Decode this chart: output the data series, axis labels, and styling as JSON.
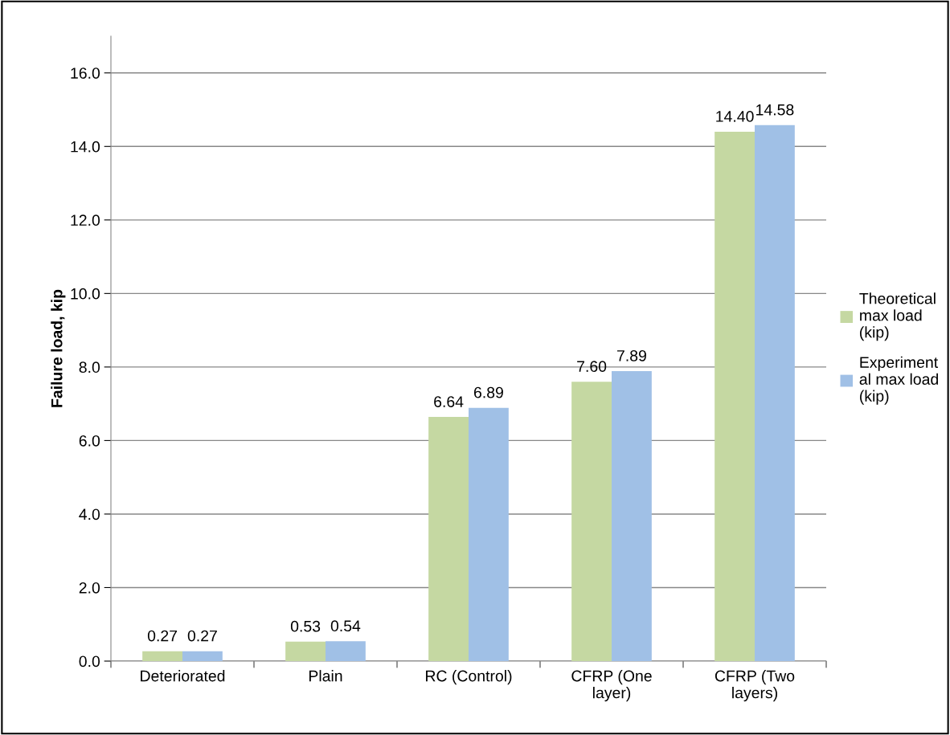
{
  "chart_data": {
    "type": "bar",
    "ylabel": "Failure load, kip",
    "categories": [
      "Deteriorated",
      "Plain",
      "RC (Control)",
      "CFRP (One\nlayer)",
      "CFRP (Two\nlayers)"
    ],
    "series": [
      {
        "name": "Theoretical\nmax load\n(kip)",
        "color": "#c5d8a2",
        "values": [
          0.27,
          0.53,
          6.64,
          7.6,
          14.4
        ],
        "value_labels": [
          "0.27",
          "0.53",
          "6.64",
          "7.60",
          "14.40"
        ]
      },
      {
        "name": "Experiment\nal max load\n(kip)",
        "color": "#a0c0e6",
        "values": [
          0.27,
          0.54,
          6.89,
          7.89,
          14.58
        ],
        "value_labels": [
          "0.27",
          "0.54",
          "6.89",
          "7.89",
          "14.58"
        ]
      }
    ],
    "ylim": [
      0,
      17
    ],
    "yticks": [
      {
        "value": 0,
        "label": "0.0"
      },
      {
        "value": 2,
        "label": "2.0"
      },
      {
        "value": 4,
        "label": "4.0"
      },
      {
        "value": 6,
        "label": "6.0"
      },
      {
        "value": 8,
        "label": "8.0"
      },
      {
        "value": 10,
        "label": "10.0"
      },
      {
        "value": 12,
        "label": "12.0"
      },
      {
        "value": 14,
        "label": "14.0"
      },
      {
        "value": 16,
        "label": "16.0"
      }
    ],
    "grid": "y",
    "legend": "right"
  }
}
